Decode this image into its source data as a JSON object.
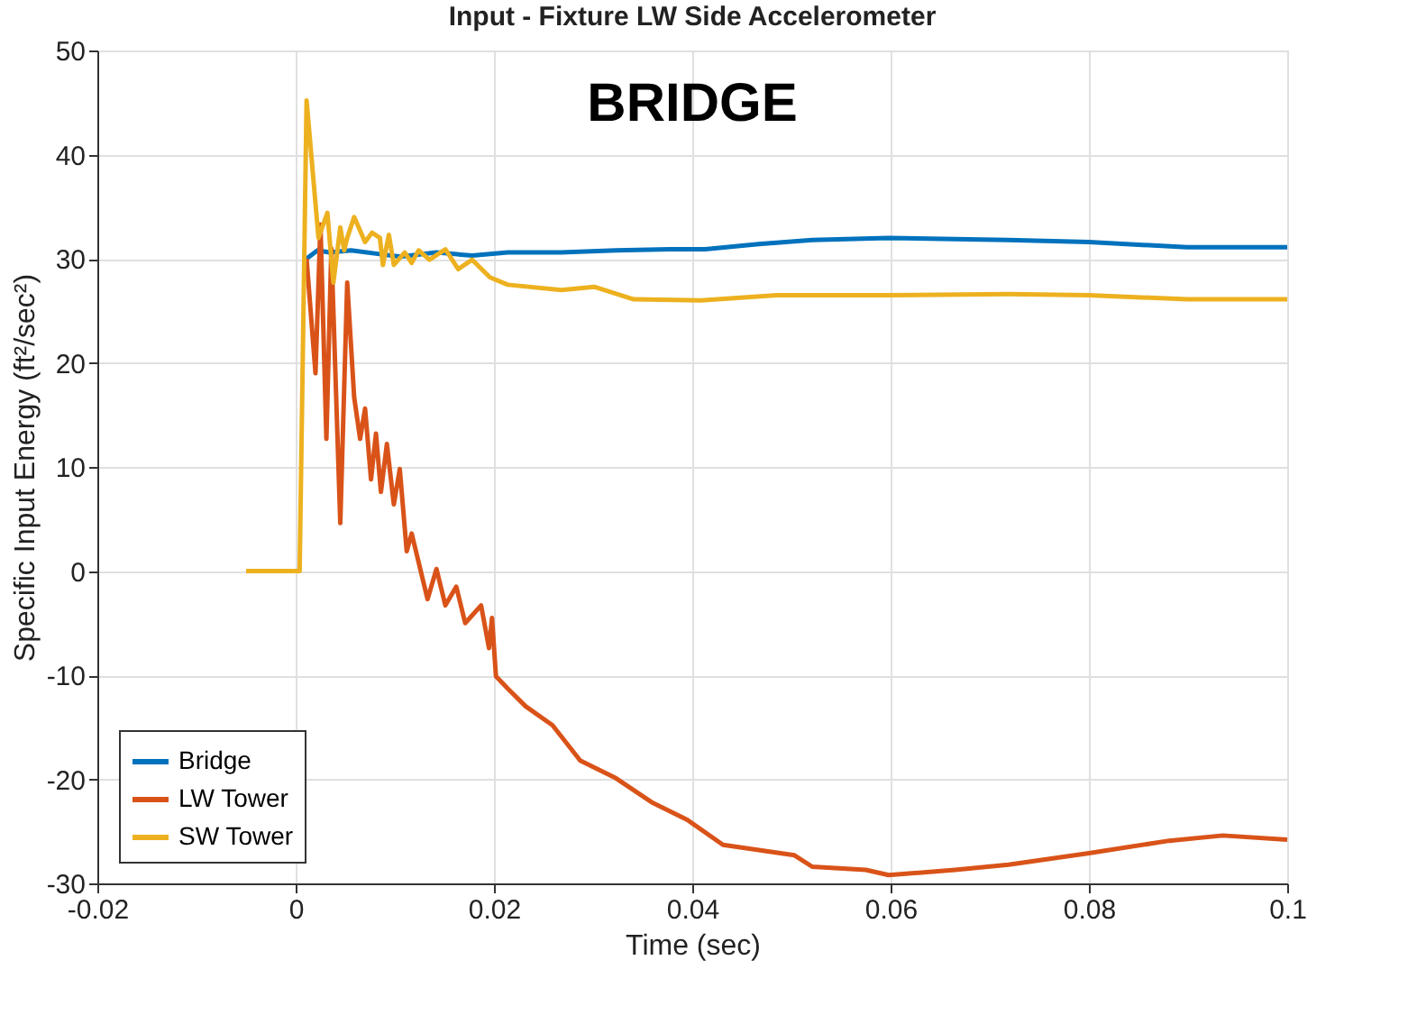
{
  "chart_data": {
    "type": "line",
    "title": "Input - Fixture LW Side Accelerometer",
    "xlabel": "Time (sec)",
    "ylabel": "Specific Input Energy (ft²/sec²)",
    "annotations": [
      "BRIDGE"
    ],
    "xlim": [
      -0.02,
      0.1
    ],
    "xticks": [
      -0.02,
      0,
      0.02,
      0.04,
      0.06,
      0.08,
      0.1
    ],
    "ylim": [
      -30,
      50
    ],
    "yticks": [
      -30,
      -20,
      -10,
      0,
      10,
      20,
      30,
      40,
      50
    ],
    "grid": true,
    "legend": "bottom left",
    "line_style": "solid",
    "marker": "none",
    "series": [
      {
        "name": "Bridge",
        "color": "#0072bd",
        "x": [
          0.0011,
          0.0022,
          0.0034,
          0.0056,
          0.0088,
          0.0106,
          0.0142,
          0.0178,
          0.0214,
          0.0268,
          0.0323,
          0.0377,
          0.0413,
          0.0467,
          0.0521,
          0.0598,
          0.0719,
          0.08,
          0.0899,
          0.1
        ],
        "values": [
          30,
          30.8,
          30.6,
          30.8,
          30.4,
          30.2,
          30.6,
          30.3,
          30.6,
          30.6,
          30.8,
          30.9,
          30.9,
          31.4,
          31.8,
          32,
          31.8,
          31.6,
          31.1,
          31.1
        ]
      },
      {
        "name": "LW Tower",
        "color": "#d95319",
        "x": [
          0.0011,
          0.002,
          0.0025,
          0.0031,
          0.0036,
          0.0045,
          0.0052,
          0.0059,
          0.0065,
          0.007,
          0.0076,
          0.0081,
          0.0086,
          0.0092,
          0.0099,
          0.0105,
          0.0112,
          0.0117,
          0.0133,
          0.0142,
          0.0151,
          0.0162,
          0.0171,
          0.0187,
          0.0195,
          0.0198,
          0.0202,
          0.0214,
          0.0232,
          0.0259,
          0.0287,
          0.0323,
          0.0359,
          0.0395,
          0.0431,
          0.0503,
          0.0521,
          0.0575,
          0.0598,
          0.0665,
          0.0719,
          0.08,
          0.0881,
          0.0935,
          0.1
        ],
        "values": [
          30,
          19,
          33.3,
          12.7,
          31,
          4.6,
          27.7,
          16.7,
          12.7,
          15.6,
          8.8,
          13.2,
          7.6,
          12.2,
          6.4,
          9.8,
          1.9,
          3.6,
          -2.7,
          0.2,
          -3.3,
          -1.5,
          -5,
          -3.3,
          -7.4,
          -4.5,
          -10.1,
          -11.3,
          -13,
          -14.8,
          -18.2,
          -19.9,
          -22.2,
          -23.9,
          -26.3,
          -27.3,
          -28.4,
          -28.7,
          -29.2,
          -28.7,
          -28.2,
          -27.1,
          -25.9,
          -25.4,
          -25.8
        ]
      },
      {
        "name": "SW Tower",
        "color": "#edb120",
        "x": [
          -0.005,
          0.0004,
          0.0011,
          0.0023,
          0.0032,
          0.0038,
          0.0045,
          0.0049,
          0.0052,
          0.0059,
          0.007,
          0.0077,
          0.0085,
          0.0088,
          0.0094,
          0.0099,
          0.011,
          0.0117,
          0.0124,
          0.0135,
          0.0151,
          0.0164,
          0.0178,
          0.0196,
          0.0214,
          0.0268,
          0.0301,
          0.0341,
          0.0409,
          0.0485,
          0.0598,
          0.0719,
          0.08,
          0.0899,
          0.1
        ],
        "values": [
          0,
          0,
          45.2,
          32,
          34.4,
          27.7,
          33,
          30.8,
          32,
          34,
          31.6,
          32.5,
          32,
          29.4,
          32.3,
          29.4,
          30.6,
          29.6,
          30.8,
          29.9,
          30.9,
          29,
          29.9,
          28.2,
          27.5,
          27,
          27.3,
          26.1,
          26,
          26.5,
          26.5,
          26.6,
          26.5,
          26.1,
          26.1
        ]
      }
    ]
  }
}
